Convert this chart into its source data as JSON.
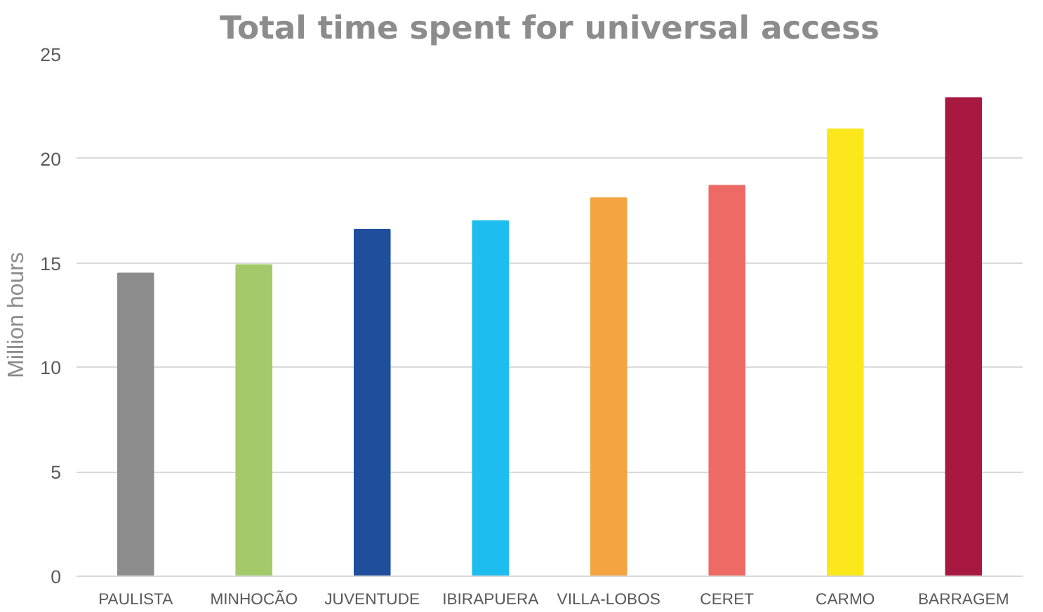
{
  "chart_data": {
    "type": "bar",
    "title": "Total time spent for universal access",
    "ylabel": "Million hours",
    "categories": [
      "PAULISTA",
      "MINHOCÃO",
      "JUVENTUDE",
      "IBIRAPUERA",
      "VILLA-LOBOS",
      "CERET",
      "CARMO",
      "BARRAGEM"
    ],
    "values": [
      14.5,
      14.9,
      16.6,
      17.0,
      18.1,
      18.7,
      21.4,
      22.9
    ],
    "colors": [
      "#8c8c8c",
      "#a3c96a",
      "#1f4e9c",
      "#1ebdf0",
      "#f5a442",
      "#ee6b65",
      "#fbe71b",
      "#a81942"
    ],
    "ylim": [
      0,
      25
    ],
    "yticks": [
      0,
      5,
      10,
      15,
      20,
      25
    ],
    "grid": "y"
  }
}
